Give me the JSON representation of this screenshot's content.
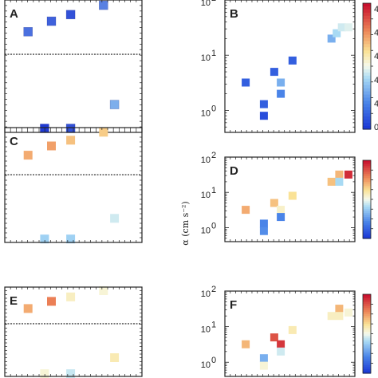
{
  "chart_data": [
    {
      "panel": "A",
      "type": "heatmap",
      "scale": "linear",
      "colormap": "blue",
      "cells": [
        {
          "x": 0.17,
          "y": 0.76,
          "v": 0.6
        },
        {
          "x": 0.34,
          "y": 0.84,
          "v": 0.7
        },
        {
          "x": 0.48,
          "y": 0.89,
          "v": 0.8
        },
        {
          "x": 0.72,
          "y": 0.96,
          "v": 0.5
        },
        {
          "x": 0.8,
          "y": 0.21,
          "v": 0.2
        },
        {
          "x": 0.29,
          "y": 0.03,
          "v": 0.95
        },
        {
          "x": 0.48,
          "y": 0.03,
          "v": 0.8
        }
      ],
      "threshold_y": 0.59
    },
    {
      "panel": "B",
      "type": "heatmap",
      "scale": "log",
      "colormap": "bwr",
      "y_ticks": [
        "10",
        "10",
        "10"
      ],
      "y_tick_exponents": [
        "0",
        "1",
        "2"
      ],
      "colorbar_ticks": [
        "4",
        "4",
        "4",
        "4",
        "4",
        "0"
      ],
      "cells": [
        {
          "x": 0.16,
          "y": 3.2,
          "v": 0.1
        },
        {
          "x": 0.3,
          "y": 1.3,
          "v": 0.1
        },
        {
          "x": 0.3,
          "y": 0.8,
          "v": 0.05
        },
        {
          "x": 0.38,
          "y": 5.0,
          "v": 0.1
        },
        {
          "x": 0.43,
          "y": 3.2,
          "v": 0.3
        },
        {
          "x": 0.43,
          "y": 2.0,
          "v": 0.2
        },
        {
          "x": 0.52,
          "y": 8.0,
          "v": 0.1
        },
        {
          "x": 0.82,
          "y": 20,
          "v": 0.3
        },
        {
          "x": 0.86,
          "y": 25,
          "v": 0.4
        },
        {
          "x": 0.9,
          "y": 32,
          "v": 0.45
        },
        {
          "x": 0.95,
          "y": 32,
          "v": 0.47
        }
      ]
    },
    {
      "panel": "C",
      "type": "heatmap",
      "scale": "linear",
      "colormap": "bwr",
      "cells": [
        {
          "x": 0.17,
          "y": 0.76,
          "v": 0.72
        },
        {
          "x": 0.34,
          "y": 0.84,
          "v": 0.74
        },
        {
          "x": 0.48,
          "y": 0.89,
          "v": 0.68
        },
        {
          "x": 0.72,
          "y": 0.96,
          "v": 0.66
        },
        {
          "x": 0.8,
          "y": 0.21,
          "v": 0.45
        },
        {
          "x": 0.29,
          "y": 0.03,
          "v": 0.38
        },
        {
          "x": 0.48,
          "y": 0.03,
          "v": 0.38
        }
      ],
      "threshold_y": 0.59
    },
    {
      "panel": "D",
      "type": "heatmap",
      "scale": "log",
      "colormap": "bwr",
      "ylabel": "α (cm s⁻²)",
      "y_ticks": [
        "10",
        "10",
        "10"
      ],
      "y_tick_exponents": [
        "0",
        "1",
        "2"
      ],
      "cells": [
        {
          "x": 0.16,
          "y": 3.2,
          "v": 0.72
        },
        {
          "x": 0.3,
          "y": 1.3,
          "v": 0.2
        },
        {
          "x": 0.3,
          "y": 0.8,
          "v": 0.22
        },
        {
          "x": 0.38,
          "y": 5.0,
          "v": 0.68
        },
        {
          "x": 0.43,
          "y": 3.2,
          "v": 0.55
        },
        {
          "x": 0.43,
          "y": 2.0,
          "v": 0.2
        },
        {
          "x": 0.52,
          "y": 8.0,
          "v": 0.62
        },
        {
          "x": 0.82,
          "y": 20,
          "v": 0.68
        },
        {
          "x": 0.88,
          "y": 32,
          "v": 0.7
        },
        {
          "x": 0.88,
          "y": 20,
          "v": 0.4
        },
        {
          "x": 0.95,
          "y": 32,
          "v": 0.95
        }
      ]
    },
    {
      "panel": "E",
      "type": "heatmap",
      "scale": "linear",
      "colormap": "bwr",
      "cells": [
        {
          "x": 0.17,
          "y": 0.76,
          "v": 0.72
        },
        {
          "x": 0.34,
          "y": 0.84,
          "v": 0.8
        },
        {
          "x": 0.48,
          "y": 0.89,
          "v": 0.56
        },
        {
          "x": 0.72,
          "y": 0.96,
          "v": 0.53
        },
        {
          "x": 0.8,
          "y": 0.21,
          "v": 0.58
        },
        {
          "x": 0.29,
          "y": 0.03,
          "v": 0.53
        },
        {
          "x": 0.48,
          "y": 0.03,
          "v": 0.44
        }
      ],
      "threshold_y": 0.59
    },
    {
      "panel": "F",
      "type": "heatmap",
      "scale": "log",
      "colormap": "bwr",
      "y_ticks": [
        "10",
        "10",
        "10"
      ],
      "y_tick_exponents": [
        "0",
        "1",
        "2"
      ],
      "cells": [
        {
          "x": 0.16,
          "y": 3.2,
          "v": 0.7
        },
        {
          "x": 0.3,
          "y": 1.3,
          "v": 0.3
        },
        {
          "x": 0.3,
          "y": 0.8,
          "v": 0.53
        },
        {
          "x": 0.38,
          "y": 5.0,
          "v": 0.88
        },
        {
          "x": 0.43,
          "y": 3.2,
          "v": 0.93
        },
        {
          "x": 0.43,
          "y": 2.0,
          "v": 0.45
        },
        {
          "x": 0.52,
          "y": 8.0,
          "v": 0.58
        },
        {
          "x": 0.82,
          "y": 20,
          "v": 0.56
        },
        {
          "x": 0.88,
          "y": 32,
          "v": 0.7
        },
        {
          "x": 0.88,
          "y": 20,
          "v": 0.56
        },
        {
          "x": 0.95,
          "y": 25,
          "v": 0.53
        }
      ]
    }
  ],
  "colors": {
    "frame": "#222222",
    "blue_dark": "#1f3fd9",
    "blue_light": "#8fc7f0",
    "red_dark": "#c8102e",
    "white": "#f5fbf5"
  }
}
